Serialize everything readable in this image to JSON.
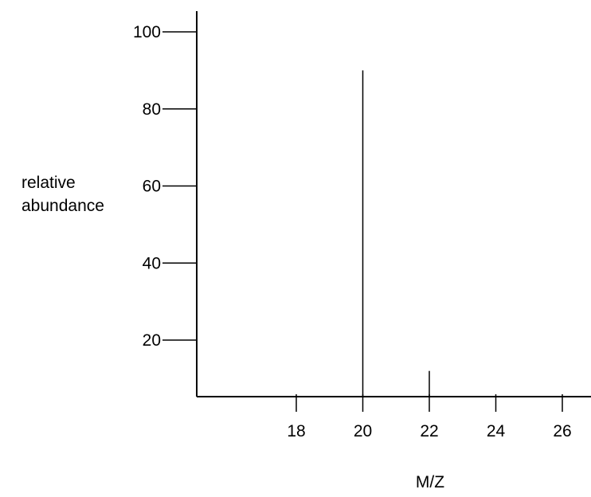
{
  "chart_data": {
    "type": "bar",
    "title": "",
    "xlabel": "M/Z",
    "ylabel_lines": [
      "relative",
      "abundance"
    ],
    "x": [
      20,
      22
    ],
    "values": [
      90,
      12
    ],
    "xticks": [
      18,
      20,
      22,
      24,
      26
    ],
    "xtick_labels": [
      "18",
      "20",
      "22",
      "24",
      "26"
    ],
    "yticks": [
      20,
      40,
      60,
      80,
      100
    ],
    "ytick_labels": [
      "20",
      "40",
      "60",
      "80",
      "100"
    ],
    "xlim": [
      15,
      26.5
    ],
    "ylim": [
      5,
      105
    ],
    "grid": false,
    "legend": "none"
  }
}
